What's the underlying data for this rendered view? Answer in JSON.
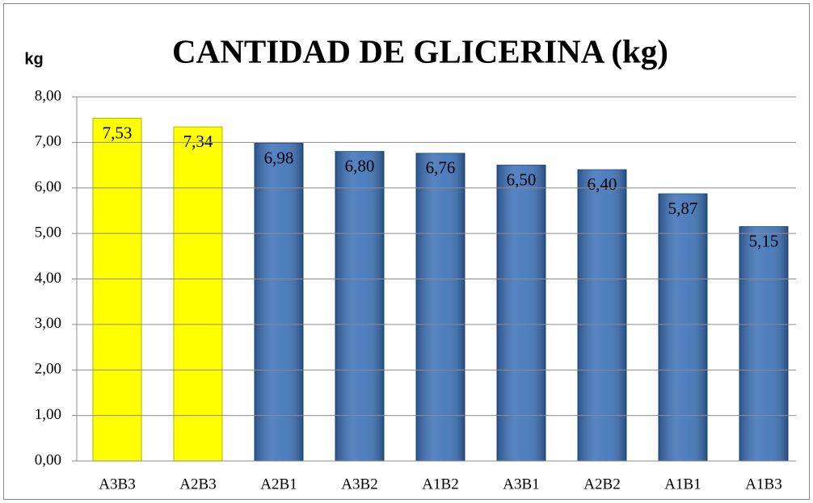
{
  "chart_data": {
    "type": "bar",
    "title": "CANTIDAD DE GLICERINA (kg)",
    "y_label": "kg",
    "categories": [
      "A3B3",
      "A2B3",
      "A2B1",
      "A3B2",
      "A1B2",
      "A3B1",
      "A2B2",
      "A1B1",
      "A1B3"
    ],
    "values": [
      7.53,
      7.34,
      6.98,
      6.8,
      6.76,
      6.5,
      6.4,
      5.87,
      5.15
    ],
    "value_labels": [
      "7,53",
      "7,34",
      "6,98",
      "6,80",
      "6,76",
      "6,50",
      "6,40",
      "5,87",
      "5,15"
    ],
    "colors": [
      "#ffff00",
      "#ffff00",
      "#3a6fb5",
      "#3a6fb5",
      "#3a6fb5",
      "#3a6fb5",
      "#3a6fb5",
      "#3a6fb5",
      "#3a6fb5"
    ],
    "ylim": [
      0,
      8
    ],
    "yticks": [
      {
        "value": 0,
        "label": "0,00"
      },
      {
        "value": 1,
        "label": "1,00"
      },
      {
        "value": 2,
        "label": "2,00"
      },
      {
        "value": 3,
        "label": "3,00"
      },
      {
        "value": 4,
        "label": "4,00"
      },
      {
        "value": 5,
        "label": "5,00"
      },
      {
        "value": 6,
        "label": "6,00"
      },
      {
        "value": 7,
        "label": "7,00"
      },
      {
        "value": 8,
        "label": "8,00"
      }
    ],
    "grid": true
  }
}
